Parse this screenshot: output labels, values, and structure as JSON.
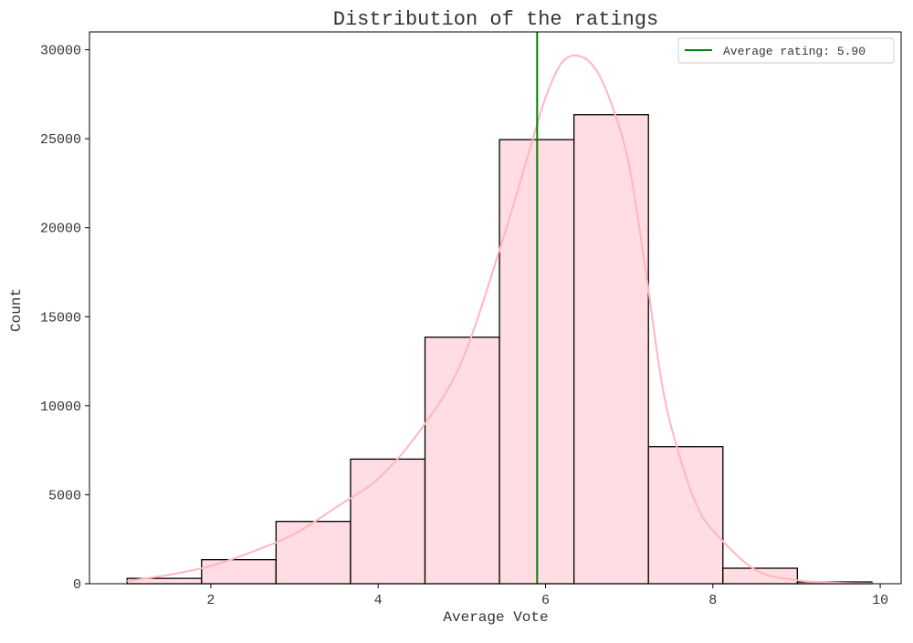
{
  "chart_data": {
    "type": "bar",
    "title": "Distribution of the ratings",
    "xlabel": "Average Vote",
    "ylabel": "Count",
    "xlim": [
      0.55,
      10.25
    ],
    "ylim": [
      0,
      31000
    ],
    "xticks": [
      2,
      4,
      6,
      8,
      10
    ],
    "yticks": [
      0,
      5000,
      10000,
      15000,
      20000,
      25000,
      30000
    ],
    "bins": [
      {
        "x0": 1.0,
        "x1": 1.89,
        "count": 300
      },
      {
        "x0": 1.89,
        "x1": 2.78,
        "count": 1350
      },
      {
        "x0": 2.78,
        "x1": 3.67,
        "count": 3500
      },
      {
        "x0": 3.67,
        "x1": 4.56,
        "count": 7000
      },
      {
        "x0": 4.56,
        "x1": 5.45,
        "count": 13850
      },
      {
        "x0": 5.45,
        "x1": 6.34,
        "count": 24950
      },
      {
        "x0": 6.34,
        "x1": 7.23,
        "count": 26350
      },
      {
        "x0": 7.23,
        "x1": 8.12,
        "count": 7700
      },
      {
        "x0": 8.12,
        "x1": 9.01,
        "count": 870
      },
      {
        "x0": 9.01,
        "x1": 9.9,
        "count": 100
      }
    ],
    "kde_curve": {
      "x": [
        1.0,
        1.5,
        2.0,
        2.5,
        3.0,
        3.5,
        4.0,
        4.5,
        5.0,
        5.5,
        5.8,
        6.0,
        6.2,
        6.4,
        6.6,
        6.8,
        7.0,
        7.2,
        7.4,
        7.6,
        7.8,
        8.0,
        8.5,
        9.0,
        9.5,
        9.9
      ],
      "y": [
        150,
        500,
        1000,
        1800,
        2800,
        4300,
        5900,
        8600,
        12500,
        19500,
        24200,
        27300,
        29300,
        29650,
        28900,
        26800,
        23500,
        17500,
        11000,
        7200,
        4500,
        3000,
        800,
        200,
        50,
        10
      ]
    },
    "average_line": {
      "x": 5.9,
      "label": "Average rating: 5.90"
    },
    "legend_position": "top-right",
    "grid": false,
    "colors": {
      "bar_fill": "#ffdde3",
      "bar_edge": "#000000",
      "kde_line": "#ffb6c1",
      "average_line": "#008000"
    }
  }
}
